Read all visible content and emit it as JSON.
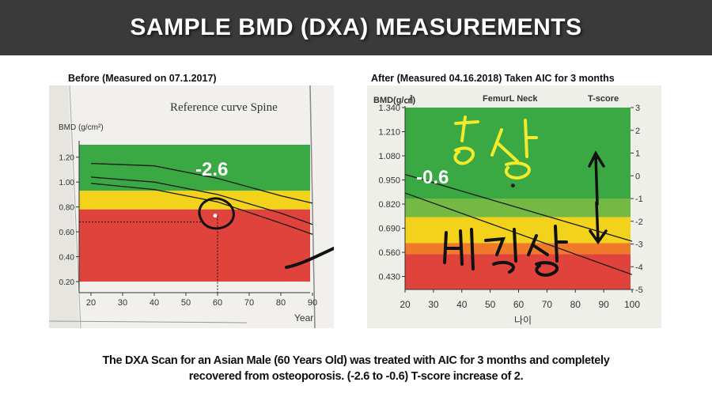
{
  "header": {
    "title": "SAMPLE BMD (DXA) MEASUREMENTS"
  },
  "captions": {
    "before": "Before (Measured on 07.1.2017)",
    "after": "After (Measured 04.16.2018) Taken AIC for 3 months"
  },
  "footer": {
    "line1": "The DXA Scan for an Asian Male (60 Years Old) was treated with AIC for 3 months and completely",
    "line2": "recovered from osteoporosis. (-2.6 to -0.6)  T-score increase of 2."
  },
  "colors": {
    "green": "#3aa843",
    "yellow": "#f2d21a",
    "red": "#e0433b",
    "orange": "#f07a2a",
    "header_bg": "#3a3a3a"
  },
  "chart_data": [
    {
      "type": "area",
      "title": "Reference curve Spine",
      "ylabel": "BMD (g/cm²)",
      "xlabel": "Year",
      "xlim": [
        20,
        90
      ],
      "ylim": [
        0.2,
        1.3
      ],
      "x_ticks": [
        "20",
        "30",
        "40",
        "50",
        "60",
        "70",
        "80",
        "90"
      ],
      "y_ticks": [
        "1.20",
        "1.00",
        "0.80",
        "0.60",
        "0.40",
        "0.20"
      ],
      "bands": [
        {
          "name": "green",
          "from": 0.93,
          "to": 1.3
        },
        {
          "name": "yellow",
          "from": 0.78,
          "to": 0.93
        },
        {
          "name": "red",
          "from": 0.2,
          "to": 0.78
        }
      ],
      "curves": [
        {
          "x": [
            20,
            40,
            60,
            80,
            90
          ],
          "values": [
            1.15,
            1.13,
            1.03,
            0.89,
            0.83
          ]
        },
        {
          "x": [
            20,
            40,
            60,
            80,
            90
          ],
          "values": [
            1.04,
            1.0,
            0.9,
            0.75,
            0.66
          ]
        },
        {
          "x": [
            20,
            40,
            60,
            80,
            90
          ],
          "values": [
            0.99,
            0.94,
            0.84,
            0.67,
            0.58
          ]
        }
      ],
      "measurement": {
        "x": 60,
        "y": 0.73,
        "tscore": "-2.6"
      }
    },
    {
      "type": "area",
      "title": "FemurL Neck",
      "ylabel": "BMD(g/㎠)",
      "y2label": "T-score",
      "xlabel": "나이",
      "xlim": [
        20,
        100
      ],
      "ylim": [
        0.36,
        1.34
      ],
      "x_ticks": [
        "20",
        "30",
        "40",
        "50",
        "60",
        "70",
        "80",
        "90",
        "100"
      ],
      "y_ticks": [
        "1.340",
        "1.210",
        "1.080",
        "0.950",
        "0.820",
        "0.690",
        "0.560",
        "0.430"
      ],
      "y2_ticks": [
        "3",
        "2",
        "1",
        "0",
        "-1",
        "-2",
        "-3",
        "-4",
        "-5"
      ],
      "bands": [
        {
          "name": "green",
          "from": 0.85,
          "to": 1.34
        },
        {
          "name": "yellow",
          "from": 0.61,
          "to": 0.75
        },
        {
          "name": "orange",
          "from": 0.55,
          "to": 0.61
        },
        {
          "name": "red",
          "from": 0.36,
          "to": 0.55
        }
      ],
      "curves": [
        {
          "x": [
            20,
            100
          ],
          "values": [
            0.98,
            0.62
          ]
        },
        {
          "x": [
            20,
            100
          ],
          "values": [
            0.88,
            0.44
          ]
        }
      ],
      "measurement": {
        "x": 58,
        "y": 0.92,
        "tscore": "-0.6"
      }
    }
  ]
}
